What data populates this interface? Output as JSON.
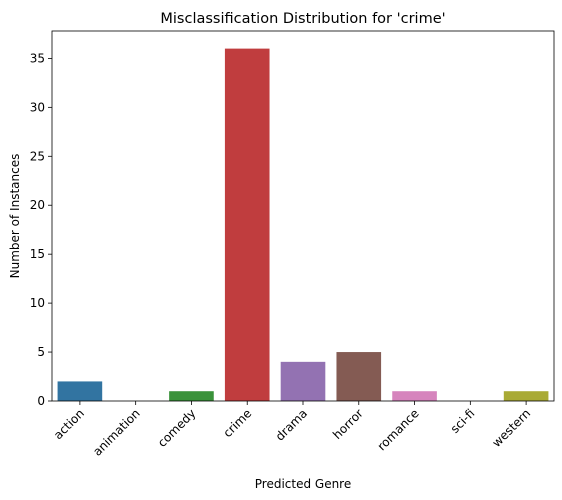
{
  "chart_data": {
    "type": "bar",
    "title": "Misclassification Distribution for 'crime'",
    "xlabel": "Predicted Genre",
    "ylabel": "Number of Instances",
    "categories": [
      "action",
      "animation",
      "comedy",
      "crime",
      "drama",
      "horror",
      "romance",
      "sci-fi",
      "western"
    ],
    "values": [
      2,
      0,
      1,
      36,
      4,
      5,
      1,
      0,
      1
    ],
    "colors": [
      "#3274a1",
      "#e1812c",
      "#3a923a",
      "#c03d3e",
      "#9372b2",
      "#845b53",
      "#d684bd",
      "#7f7f7f",
      "#a9aa35"
    ],
    "ylim": [
      0,
      37.8
    ],
    "yticks": [
      0,
      5,
      10,
      15,
      20,
      25,
      30,
      35
    ],
    "grid": false,
    "legend": "none"
  }
}
